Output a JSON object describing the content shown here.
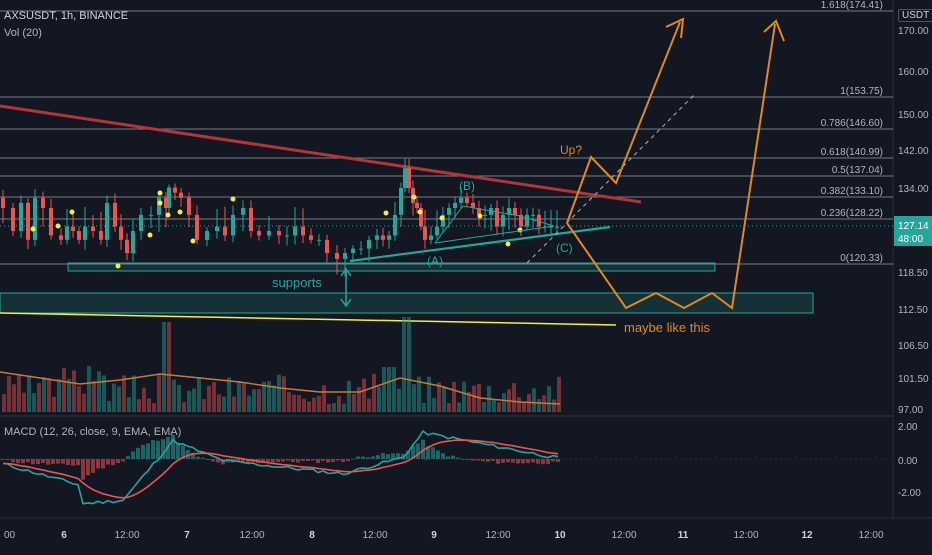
{
  "chart_header": {
    "symbol": "AXSUSDT, 1h, BINANCE",
    "volume_label": "Vol (20)",
    "currency": "USDT",
    "macd_label": "MACD (12, 26, close, 9, EMA, EMA)"
  },
  "chart_data": [
    {
      "type": "candlestick",
      "title": "AXSUSDT, 1h, BINANCE",
      "price_axis_ticks": [
        "170.00",
        "160.00",
        "150.00",
        "142.00",
        "134.00",
        "127.14",
        "118.50",
        "112.50",
        "106.50",
        "101.50",
        "97.00"
      ],
      "time_axis_ticks": [
        "6",
        "12:00",
        "7",
        "12:00",
        "8",
        "12:00",
        "9",
        "12:00",
        "10",
        "12:00",
        "11",
        "12:00",
        "12",
        "12:00"
      ],
      "last_price": "127.14",
      "countdown": "48:00",
      "fibonacci_levels": [
        {
          "ratio": "1.618",
          "price": 174.41,
          "label": "1.618(174.41)"
        },
        {
          "ratio": "1",
          "price": 153.75,
          "label": "1(153.75)"
        },
        {
          "ratio": "0.786",
          "price": 146.6,
          "label": "0.786(146.60)"
        },
        {
          "ratio": "0.618",
          "price": 140.99,
          "label": "0.618(140.99)"
        },
        {
          "ratio": "0.5",
          "price": 137.04,
          "label": "0.5(137.04)"
        },
        {
          "ratio": "0.382",
          "price": 133.1,
          "label": "0.382(133.10)"
        },
        {
          "ratio": "0.236",
          "price": 128.22,
          "label": "0.236(128.22)"
        },
        {
          "ratio": "0",
          "price": 120.33,
          "label": "0(120.33)"
        }
      ],
      "annotations": [
        "supports",
        "Up?",
        "maybe like this",
        "(A)",
        "(B)",
        "(C)"
      ],
      "colors": {
        "up": "#26a69a",
        "down": "#ef5350",
        "background": "#131722",
        "resistance": "#b2353a",
        "support_line": "#f5ef3e",
        "projection": "#e08a1e",
        "support_zone": "#26a69a",
        "fib_lines": "#b2b5be",
        "wave_labels": "#26a69a"
      }
    },
    {
      "type": "bar",
      "title": "Vol (20)",
      "description_series": [
        "volume"
      ]
    },
    {
      "type": "line",
      "title": "MACD (12, 26, close, 9, EMA, EMA)",
      "y_ticks": [
        "2.00",
        "0.00",
        "-2.00"
      ],
      "series": [
        {
          "name": "MACD",
          "color": "#26a69a"
        },
        {
          "name": "Signal",
          "color": "#ef5350"
        },
        {
          "name": "Histogram",
          "color": "#26a69a"
        }
      ]
    }
  ]
}
